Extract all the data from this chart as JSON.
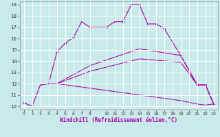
{
  "xlabel": "Windchill (Refroidissement éolien,°C)",
  "background_color": "#c8eaea",
  "grid_color": "#b0d8d8",
  "line_color": "#aa00aa",
  "xlim": [
    -0.5,
    23.5
  ],
  "ylim": [
    9.7,
    19.3
  ],
  "xticks": [
    0,
    1,
    2,
    3,
    4,
    5,
    6,
    7,
    8,
    10,
    11,
    12,
    13,
    14,
    15,
    16,
    17,
    18,
    19,
    20,
    21,
    22,
    23
  ],
  "yticks": [
    10,
    11,
    12,
    13,
    14,
    15,
    16,
    17,
    18,
    19
  ],
  "curve1_x": [
    0,
    1,
    2,
    3,
    4,
    5,
    6,
    7,
    8,
    10,
    11,
    12,
    13,
    14,
    15,
    16,
    17,
    19,
    21,
    22,
    23
  ],
  "curve1_y": [
    10.3,
    10.0,
    11.9,
    12.0,
    14.8,
    15.6,
    16.1,
    17.5,
    17.0,
    17.0,
    17.5,
    17.5,
    19.0,
    19.0,
    17.3,
    17.3,
    16.9,
    14.5,
    11.9,
    11.9,
    10.2
  ],
  "curve2_x": [
    2,
    3,
    4,
    8,
    14,
    19,
    21,
    22,
    23
  ],
  "curve2_y": [
    11.9,
    12.0,
    12.0,
    13.6,
    15.1,
    14.5,
    11.9,
    11.9,
    10.2
  ],
  "curve3_x": [
    2,
    3,
    4,
    8,
    14,
    19,
    21,
    22,
    23
  ],
  "curve3_y": [
    11.9,
    12.0,
    12.0,
    13.1,
    14.2,
    13.9,
    11.9,
    11.9,
    10.2
  ],
  "curve4_x": [
    2,
    3,
    4,
    8,
    14,
    19,
    21,
    22,
    23
  ],
  "curve4_y": [
    11.9,
    12.0,
    12.0,
    11.6,
    11.0,
    10.5,
    10.2,
    10.1,
    10.2
  ]
}
